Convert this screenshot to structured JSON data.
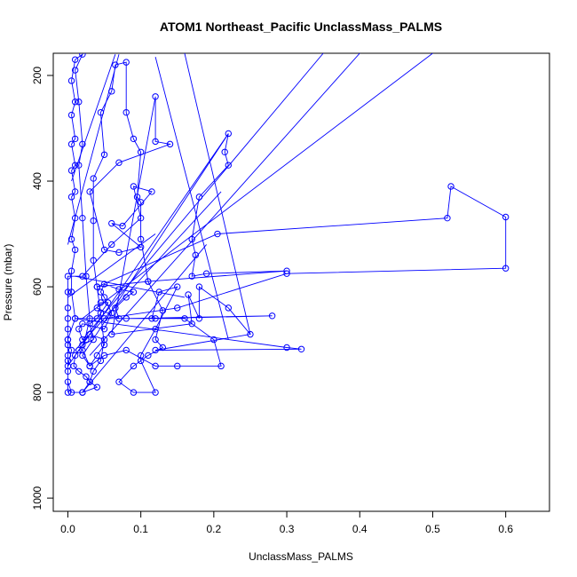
{
  "chart_data": {
    "type": "scatter",
    "title": "ATOM1 Northeast_Pacific UnclassMass_PALMS",
    "xlabel": "UnclassMass_PALMS",
    "ylabel": "Pressure (mbar)",
    "xlim": [
      -0.02,
      0.66
    ],
    "ylim": [
      1025,
      158
    ],
    "y_reversed": true,
    "x_ticks": [
      "0.0",
      "0.1",
      "0.2",
      "0.3",
      "0.4",
      "0.5",
      "0.6"
    ],
    "y_ticks": [
      "200",
      "400",
      "600",
      "800",
      "1000"
    ],
    "grid": false,
    "legend": "none",
    "color": "#0000ff",
    "marker": "open-circle",
    "connected": true,
    "series": [
      {
        "points": [
          [
            0.0,
            800
          ],
          [
            0.0,
            750
          ],
          [
            0.005,
            720
          ],
          [
            0.0,
            700
          ],
          [
            0.01,
            660
          ],
          [
            0.005,
            610
          ],
          [
            0.005,
            570
          ],
          [
            0.01,
            530
          ],
          [
            0.005,
            510
          ],
          [
            0.01,
            470
          ],
          [
            0.005,
            430
          ],
          [
            0.01,
            420
          ],
          [
            0.005,
            380
          ],
          [
            0.01,
            370
          ],
          [
            0.005,
            330
          ],
          [
            0.01,
            320
          ],
          [
            0.005,
            275
          ],
          [
            0.01,
            250
          ],
          [
            0.005,
            210
          ],
          [
            0.01,
            170
          ],
          [
            0.02,
            160
          ],
          [
            0.01,
            190
          ],
          [
            0.015,
            250
          ],
          [
            0.02,
            330
          ],
          [
            0.015,
            370
          ],
          [
            0.02,
            470
          ],
          [
            0.025,
            580
          ],
          [
            0.03,
            660
          ],
          [
            0.02,
            720
          ],
          [
            0.03,
            750
          ],
          [
            0.04,
            730
          ],
          [
            0.05,
            710
          ],
          [
            0.045,
            650
          ],
          [
            0.04,
            600
          ],
          [
            0.035,
            550
          ],
          [
            0.035,
            475
          ],
          [
            0.035,
            395
          ],
          [
            0.05,
            350
          ],
          [
            0.045,
            270
          ],
          [
            0.06,
            230
          ],
          [
            0.065,
            180
          ],
          [
            0.08,
            175
          ],
          [
            0.08,
            270
          ],
          [
            0.09,
            320
          ],
          [
            0.1,
            345
          ],
          [
            0.095,
            430
          ],
          [
            0.1,
            440
          ],
          [
            0.1,
            510
          ],
          [
            0.11,
            590
          ],
          [
            0.13,
            645
          ],
          [
            0.12,
            700
          ],
          [
            0.13,
            715
          ],
          [
            0.11,
            730
          ],
          [
            0.09,
            750
          ],
          [
            0.07,
            780
          ],
          [
            0.09,
            800
          ],
          [
            0.12,
            800
          ],
          [
            0.1,
            740
          ],
          [
            0.1,
            730
          ],
          [
            0.12,
            680
          ],
          [
            0.15,
            600
          ],
          [
            0.125,
            610
          ],
          [
            0.115,
            660
          ],
          [
            0.16,
            660
          ],
          [
            0.2,
            700
          ],
          [
            0.21,
            750
          ],
          [
            0.15,
            750
          ],
          [
            0.12,
            750
          ],
          [
            0.08,
            720
          ],
          [
            0.05,
            730
          ],
          [
            0.03,
            750
          ],
          [
            0.02,
            730
          ],
          [
            0.22,
            310
          ],
          [
            0.215,
            345
          ],
          [
            0.22,
            370
          ],
          [
            0.18,
            430
          ],
          [
            0.17,
            510
          ],
          [
            0.175,
            540
          ],
          [
            0.17,
            580
          ],
          [
            0.19,
            575
          ],
          [
            0.3,
            570
          ],
          [
            0.11,
            590
          ],
          [
            0.04,
            600
          ],
          [
            0.205,
            500
          ],
          [
            0.52,
            470
          ],
          [
            0.525,
            410
          ],
          [
            0.6,
            468
          ],
          [
            0.6,
            565
          ],
          [
            0.3,
            575
          ],
          [
            0.15,
            640
          ],
          [
            0.05,
            660
          ],
          [
            0.08,
            660
          ],
          [
            0.28,
            655
          ],
          [
            0.12,
            660
          ],
          [
            0.01,
            660
          ],
          [
            0.3,
            715
          ],
          [
            0.32,
            718
          ],
          [
            0.12,
            720
          ],
          [
            0.25,
            690
          ],
          [
            0.22,
            640
          ],
          [
            0.18,
            600
          ],
          [
            0.18,
            660
          ],
          [
            0.165,
            615
          ],
          [
            0.17,
            670
          ],
          [
            0.06,
            690
          ],
          [
            0.12,
            240
          ],
          [
            0.12,
            325
          ],
          [
            0.14,
            330
          ],
          [
            0.07,
            365
          ],
          [
            0.03,
            420
          ],
          [
            0.05,
            530
          ],
          [
            0.07,
            535
          ],
          [
            0.1,
            525
          ],
          [
            0.06,
            480
          ],
          [
            0.075,
            485
          ],
          [
            0.115,
            420
          ],
          [
            0.09,
            410
          ],
          [
            0.1,
            470
          ],
          [
            0.06,
            520
          ],
          [
            0.02,
            580
          ],
          [
            0.0,
            580
          ],
          [
            0.0,
            610
          ],
          [
            0.0,
            640
          ],
          [
            0.0,
            660
          ],
          [
            0.0,
            680
          ],
          [
            0.0,
            700
          ],
          [
            0.0,
            710
          ],
          [
            0.0,
            730
          ],
          [
            0.0,
            740
          ],
          [
            0.0,
            760
          ],
          [
            0.0,
            780
          ],
          [
            0.005,
            800
          ],
          [
            0.02,
            800
          ],
          [
            0.03,
            780
          ],
          [
            0.035,
            760
          ],
          [
            0.045,
            740
          ],
          [
            0.05,
            700
          ],
          [
            0.03,
            690
          ],
          [
            0.025,
            700
          ],
          [
            0.02,
            700
          ],
          [
            0.015,
            680
          ],
          [
            0.02,
            670
          ],
          [
            0.05,
            680
          ],
          [
            0.06,
            650
          ],
          [
            0.05,
            620
          ],
          [
            0.045,
            610
          ],
          [
            0.05,
            595
          ],
          [
            0.07,
            605
          ],
          [
            0.09,
            610
          ],
          [
            0.08,
            620
          ],
          [
            0.065,
            640
          ],
          [
            0.07,
            660
          ],
          [
            0.04,
            640
          ],
          [
            0.045,
            630
          ],
          [
            0.055,
            630
          ],
          [
            0.04,
            660
          ],
          [
            0.03,
            670
          ],
          [
            0.035,
            700
          ],
          [
            0.02,
            710
          ],
          [
            0.015,
            720
          ],
          [
            0.01,
            730
          ],
          [
            0.008,
            750
          ],
          [
            0.015,
            760
          ],
          [
            0.025,
            770
          ],
          [
            0.03,
            780
          ],
          [
            0.04,
            790
          ],
          [
            0.02,
            800
          ]
        ]
      }
    ],
    "long_segments": [
      {
        "from": [
          0.12,
          165
        ],
        "to": [
          0.22,
          700
        ]
      },
      {
        "from": [
          0.16,
          158
        ],
        "to": [
          0.25,
          690
        ]
      },
      {
        "from": [
          0.35,
          158
        ],
        "to": [
          0.02,
          700
        ]
      },
      {
        "from": [
          0.4,
          158
        ],
        "to": [
          0.03,
          730
        ]
      },
      {
        "from": [
          0.5,
          158
        ],
        "to": [
          0.02,
          660
        ]
      },
      {
        "from": [
          0.22,
          310
        ],
        "to": [
          0.0,
          750
        ]
      },
      {
        "from": [
          0.21,
          420
        ],
        "to": [
          0.01,
          720
        ]
      },
      {
        "from": [
          0.19,
          520
        ],
        "to": [
          0.02,
          800
        ]
      },
      {
        "from": [
          0.16,
          620
        ],
        "to": [
          0.01,
          580
        ]
      },
      {
        "from": [
          0.12,
          500
        ],
        "to": [
          0.0,
          620
        ]
      },
      {
        "from": [
          0.07,
          160
        ],
        "to": [
          0.0,
          520
        ]
      },
      {
        "from": [
          0.065,
          160
        ],
        "to": [
          0.005,
          400
        ]
      }
    ]
  }
}
